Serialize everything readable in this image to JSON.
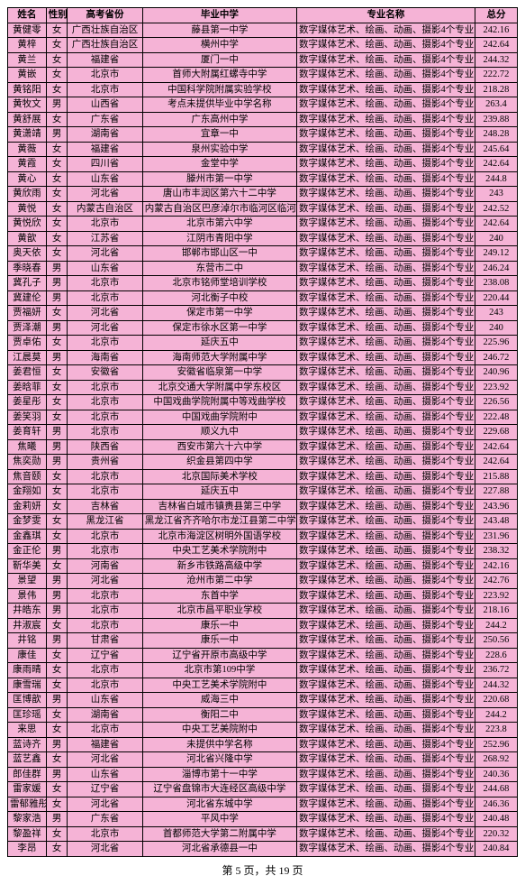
{
  "columns": [
    "姓名",
    "性别",
    "高考省份",
    "毕业中学",
    "专业名称",
    "总分"
  ],
  "major": "数字媒体艺术、绘画、动画、摄影4个专业",
  "rows": [
    [
      "黄健零",
      "女",
      "广西壮族自治区",
      "藤县第一中学",
      "",
      242.16
    ],
    [
      "黄梓",
      "女",
      "广西壮族自治区",
      "横州中学",
      "",
      242.64
    ],
    [
      "黄兰",
      "女",
      "福建省",
      "厦门一中",
      "",
      244.32
    ],
    [
      "黄嵌",
      "女",
      "北京市",
      "首师大附属红螺寺中学",
      "",
      222.72
    ],
    [
      "黄铭阳",
      "女",
      "北京市",
      "中国科学院附属实验学校",
      "",
      218.28
    ],
    [
      "黄牧文",
      "男",
      "山西省",
      "考点未提供毕业中学名称",
      "",
      263.4
    ],
    [
      "黄舒展",
      "女",
      "广东省",
      "广东高州中学",
      "",
      239.88
    ],
    [
      "黄潇靖",
      "男",
      "湖南省",
      "宜章一中",
      "",
      248.28
    ],
    [
      "黄薇",
      "女",
      "福建省",
      "泉州实验中学",
      "",
      245.64
    ],
    [
      "黄霞",
      "女",
      "四川省",
      "金堂中学",
      "",
      242.64
    ],
    [
      "黄心",
      "女",
      "山东省",
      "滕州市第一中学",
      "",
      244.8
    ],
    [
      "黄欣雨",
      "女",
      "河北省",
      "唐山市丰润区第六十二中学",
      "",
      243
    ],
    [
      "黄悦",
      "女",
      "内蒙古自治区",
      "内蒙古自治区巴彦淖尔市临河区临河一中",
      "",
      242.52
    ],
    [
      "黄悦欣",
      "女",
      "北京市",
      "北京市第六中学",
      "",
      242.64
    ],
    [
      "黄歆",
      "女",
      "江苏省",
      "江阴市青阳中学",
      "",
      240
    ],
    [
      "奥天依",
      "女",
      "河北省",
      "邯郸市邯山区一中",
      "",
      249.12
    ],
    [
      "季晓春",
      "男",
      "山东省",
      "东营市二中",
      "",
      246.24
    ],
    [
      "冀孔子",
      "男",
      "北京市",
      "北京市铭师堂培训学校",
      "",
      238.08
    ],
    [
      "冀建伦",
      "男",
      "北京市",
      "河北衡子中校",
      "",
      220.44
    ],
    [
      "贾福妍",
      "女",
      "河北省",
      "保定市第一中学",
      "",
      243
    ],
    [
      "贾泽潮",
      "男",
      "河北省",
      "保定市徐水区第一中学",
      "",
      240
    ],
    [
      "贾卓佑",
      "女",
      "北京市",
      "延庆五中",
      "",
      225.96
    ],
    [
      "江晨莫",
      "男",
      "海南省",
      "海南师范大学附属中学",
      "",
      246.72
    ],
    [
      "姜君恒",
      "女",
      "安徽省",
      "安徽省临泉第一中学",
      "",
      240.96
    ],
    [
      "姜晗菲",
      "女",
      "北京市",
      "北京交通大学附属中学东校区",
      "",
      223.92
    ],
    [
      "姜星彤",
      "女",
      "北京市",
      "中国戏曲学院附属中等戏曲学校",
      "",
      226.56
    ],
    [
      "姜笑羽",
      "女",
      "北京市",
      "中国戏曲学院附中",
      "",
      222.48
    ],
    [
      "姜育轩",
      "男",
      "北京市",
      "顺义九中",
      "",
      229.68
    ],
    [
      "焦曦",
      "男",
      "陕西省",
      "西安市第六十六中学",
      "",
      242.64
    ],
    [
      "焦奕勋",
      "男",
      "贵州省",
      "织金县第四中学",
      "",
      242.64
    ],
    [
      "焦音颐",
      "女",
      "北京市",
      "北京国际美术学校",
      "",
      215.88
    ],
    [
      "金翔如",
      "女",
      "北京市",
      "延庆五中",
      "",
      227.88
    ],
    [
      "金莉妍",
      "女",
      "吉林省",
      "吉林省白城市镇赉县第三中学",
      "",
      243.96
    ],
    [
      "金梦雯",
      "女",
      "黑龙江省",
      "黑龙江省齐齐哈尔市龙江县第二中学",
      "",
      243.48
    ],
    [
      "金鑫琪",
      "女",
      "北京市",
      "北京市海淀区树明外国语学校",
      "",
      231.96
    ],
    [
      "金正伦",
      "男",
      "北京市",
      "中央工艺美术学院附中",
      "",
      238.32
    ],
    [
      "靳华美",
      "女",
      "河南省",
      "新乡市铁路高级中学",
      "",
      242.16
    ],
    [
      "景望",
      "男",
      "河北省",
      "沧州市第二中学",
      "",
      242.76
    ],
    [
      "景伟",
      "男",
      "北京市",
      "东首中学",
      "",
      223.92
    ],
    [
      "井皓东",
      "男",
      "北京市",
      "北京市昌平职业学校",
      "",
      218.16
    ],
    [
      "井淑宸",
      "女",
      "北京市",
      "康乐一中",
      "",
      244.2
    ],
    [
      "井铭",
      "男",
      "甘肃省",
      "康乐一中",
      "",
      250.56
    ],
    [
      "康佳",
      "女",
      "辽宁省",
      "辽宁省开原市高级中学",
      "",
      228.6
    ],
    [
      "康雨晴",
      "女",
      "北京市",
      "北京市第109中学",
      "",
      236.72
    ],
    [
      "康雪瑞",
      "女",
      "北京市",
      "中央工艺美术学院附中",
      "",
      244.32
    ],
    [
      "匡博歆",
      "男",
      "山东省",
      "威海三中",
      "",
      220.68
    ],
    [
      "匡珍瑶",
      "女",
      "湖南省",
      "衡阳二中",
      "",
      244.2
    ],
    [
      "来思",
      "女",
      "北京市",
      "中央工艺美院附中",
      "",
      223.8
    ],
    [
      "蓝诗齐",
      "男",
      "福建省",
      "未提供中学名称",
      "",
      252.96
    ],
    [
      "蓝艺鑫",
      "女",
      "河北省",
      "河北省兴隆中学",
      "",
      268.92
    ],
    [
      "郎佳群",
      "男",
      "山东省",
      "淄博市第十一中学",
      "",
      240.36
    ],
    [
      "雷家媛",
      "女",
      "辽宁省",
      "辽宁省盘锦市大连经区高级中学",
      "",
      244.68
    ],
    [
      "雷郁雅彤",
      "女",
      "河北省",
      "河北省东城中学",
      "",
      246.36
    ],
    [
      "黎家浩",
      "男",
      "广东省",
      "平风中学",
      "",
      240.48
    ],
    [
      "黎盈祥",
      "女",
      "北京市",
      "首都师范大学第二附属中学",
      "",
      220.32
    ],
    [
      "李昂",
      "女",
      "河北省",
      "河北省承德县一中",
      "",
      240.84
    ]
  ],
  "pager": {
    "page": 5,
    "total": 19,
    "label": "第 5 页，共 19 页"
  }
}
